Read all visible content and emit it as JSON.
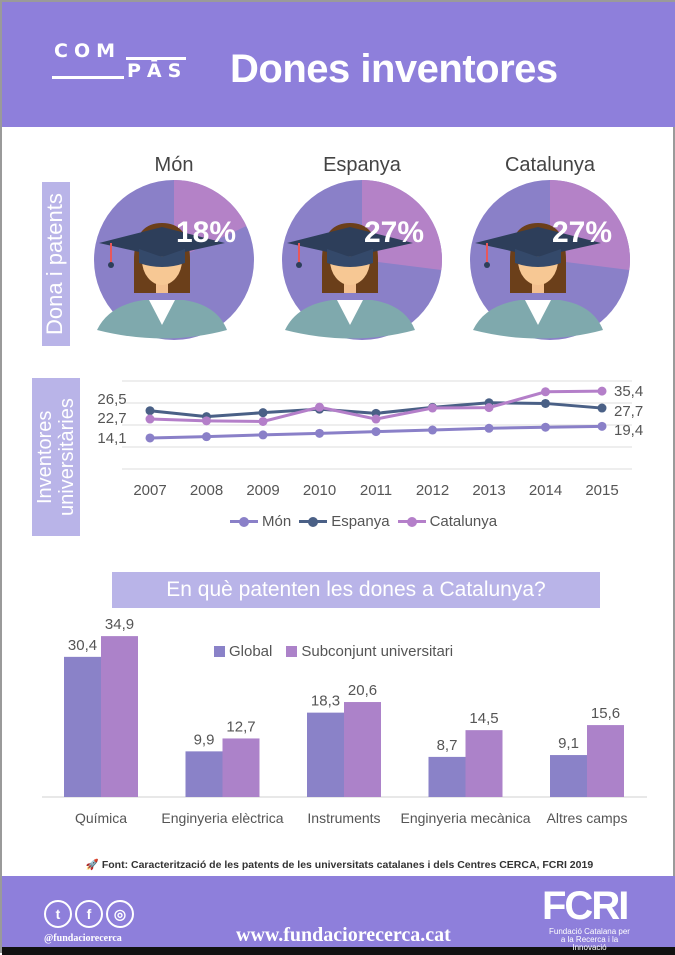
{
  "header": {
    "logo_top": "COM",
    "logo_bottom": "PĀS",
    "title": "Dones inventores"
  },
  "section1": {
    "label": "Dona i patents",
    "pies": [
      {
        "title": "Món",
        "pct_label": "18%",
        "fraction": 0.18
      },
      {
        "title": "Espanya",
        "pct_label": "27%",
        "fraction": 0.27
      },
      {
        "title": "Catalunya",
        "pct_label": "27%",
        "fraction": 0.27
      }
    ]
  },
  "section2": {
    "label": "Inventores universitàries"
  },
  "colors": {
    "brand": "#8e7fdb",
    "pie_main": "#8a80c8",
    "pie_slice": "#b482c7",
    "mon": "#8a80c8",
    "espanya": "#4a6086",
    "catalunya": "#b47fc9",
    "global": "#8a82c8",
    "subconjunt": "#ac82c9",
    "label_bg": "#b9b4e8"
  },
  "chart_data": [
    {
      "type": "line",
      "categories": [
        "2007",
        "2008",
        "2009",
        "2010",
        "2011",
        "2012",
        "2013",
        "2014",
        "2015"
      ],
      "ylim": [
        0,
        40
      ],
      "grid": true,
      "legend": "bottom",
      "series": [
        {
          "name": "Món",
          "values": [
            14.1,
            14.7,
            15.5,
            16.2,
            17.0,
            17.7,
            18.5,
            19.0,
            19.4
          ]
        },
        {
          "name": "Espanya",
          "values": [
            26.5,
            23.8,
            25.6,
            27.2,
            25.3,
            28.0,
            30.1,
            29.8,
            27.7
          ]
        },
        {
          "name": "Catalunya",
          "values": [
            22.7,
            21.9,
            21.6,
            28.1,
            22.7,
            27.7,
            27.9,
            35.1,
            35.4
          ]
        }
      ],
      "data_labels": {
        "start": [
          "14,1",
          "26,5",
          "22,7"
        ],
        "end": [
          "19,4",
          "27,7",
          "35,4"
        ]
      }
    },
    {
      "type": "bar",
      "title": "En què patenten les dones a Catalunya?",
      "categories": [
        "Química",
        "Enginyeria elèctrica",
        "Instruments",
        "Enginyeria mecànica",
        "Altres camps"
      ],
      "legend": "top",
      "series": [
        {
          "name": "Global",
          "values": [
            30.4,
            9.9,
            18.3,
            8.7,
            9.1
          ],
          "labels": [
            "30,4",
            "9,9",
            "18,3",
            "8,7",
            "9,1"
          ]
        },
        {
          "name": "Subconjunt universitari",
          "values": [
            34.9,
            12.7,
            20.6,
            14.5,
            15.6
          ],
          "labels": [
            "34,9",
            "12,7",
            "20,6",
            "14,5",
            "15,6"
          ]
        }
      ],
      "ylim": [
        0,
        35
      ]
    }
  ],
  "source": "Font: Caracterització de les patents de les universitats catalanes i dels Centres CERCA, FCRI 2019",
  "footer": {
    "handle": "@fundaciorecerca",
    "url": "www.fundaciorecerca.cat",
    "logo": "FCRI",
    "logo_sub": "Fundació Catalana per a la Recerca i la Innovació",
    "social_icons": [
      "twitter-icon",
      "facebook-icon",
      "instagram-icon"
    ]
  }
}
